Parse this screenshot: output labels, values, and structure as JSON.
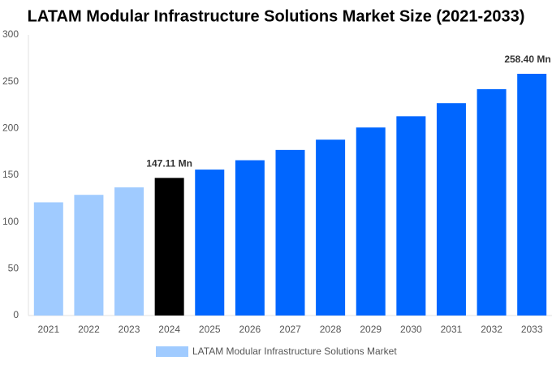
{
  "chart_data": {
    "type": "bar",
    "title": "LATAM Modular Infrastructure Solutions Market Size (2021-2033)",
    "categories": [
      "2021",
      "2022",
      "2023",
      "2024",
      "2025",
      "2026",
      "2027",
      "2028",
      "2029",
      "2030",
      "2031",
      "2032",
      "2033"
    ],
    "series": [
      {
        "name": "LATAM Modular Infrastructure Solutions Market",
        "color": "#a0cbff",
        "values": [
          121,
          129,
          137,
          147.11,
          156,
          166,
          177,
          188,
          201,
          213,
          227,
          242,
          258.4
        ],
        "value_labels": [
          null,
          null,
          null,
          "147.11 Mn",
          null,
          null,
          null,
          null,
          null,
          null,
          null,
          null,
          "258.40 Mn"
        ],
        "colors": [
          "#a0cbff",
          "#a0cbff",
          "#a0cbff",
          "#000000",
          "#0066ff",
          "#0066ff",
          "#0066ff",
          "#0066ff",
          "#0066ff",
          "#0066ff",
          "#0066ff",
          "#0066ff",
          "#0066ff"
        ]
      }
    ],
    "ylim": [
      0,
      300
    ],
    "yticks": [
      0,
      50,
      100,
      150,
      200,
      250,
      300
    ],
    "grid": false
  }
}
